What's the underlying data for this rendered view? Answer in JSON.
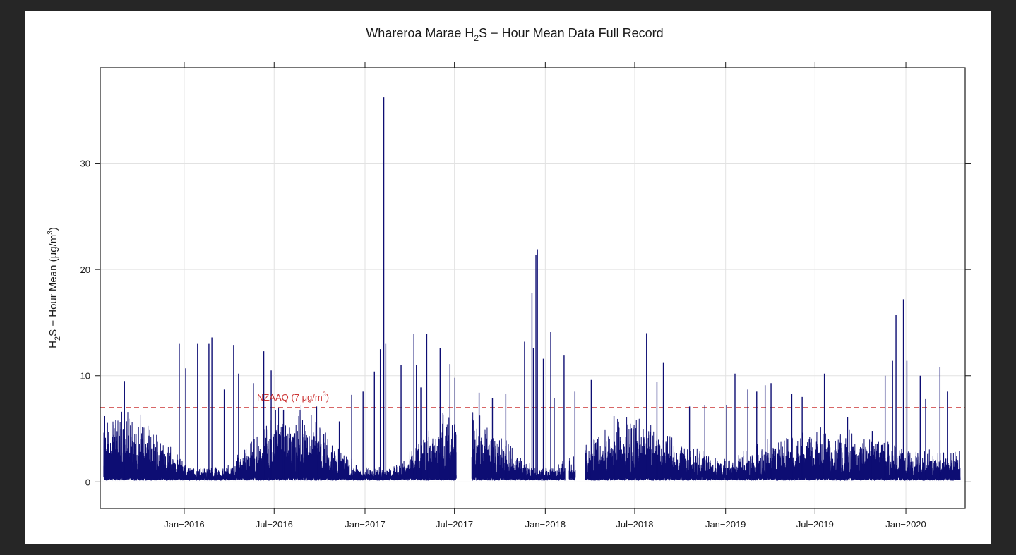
{
  "chart_data": {
    "type": "line",
    "title": {
      "pre": "Whareroa Marae H",
      "sub": "2",
      "post": "S − Hour Mean Data Full Record"
    },
    "ylabel": {
      "pre": "H",
      "sub": "2",
      "mid": "S − Hour Mean (μg/m",
      "sup": "3",
      "post": ")"
    },
    "xlabel": "",
    "x_range": [
      "2015-07-15",
      "2020-04-30"
    ],
    "ylim": [
      -2.5,
      39
    ],
    "y_ticks": [
      0,
      10,
      20,
      30
    ],
    "x_ticks": [
      {
        "date": "2016-01-01",
        "label": "Jan−2016"
      },
      {
        "date": "2016-07-01",
        "label": "Jul−2016"
      },
      {
        "date": "2017-01-01",
        "label": "Jan−2017"
      },
      {
        "date": "2017-07-01",
        "label": "Jul−2017"
      },
      {
        "date": "2018-01-01",
        "label": "Jan−2018"
      },
      {
        "date": "2018-07-01",
        "label": "Jul−2018"
      },
      {
        "date": "2019-01-01",
        "label": "Jan−2019"
      },
      {
        "date": "2019-07-01",
        "label": "Jul−2019"
      },
      {
        "date": "2020-01-01",
        "label": "Jan−2020"
      }
    ],
    "grid": true,
    "series": [
      {
        "color": "#0d0d73",
        "data_gaps": [
          [
            "2017-07-05",
            "2017-08-05"
          ],
          [
            "2018-02-10",
            "2018-02-18"
          ],
          [
            "2018-03-03",
            "2018-03-22"
          ]
        ],
        "record_start": "2015-07-22",
        "record_end": "2020-04-20",
        "peaks": [
          [
            "2015-07-24",
            6.2
          ],
          [
            "2015-09-02",
            9.5
          ],
          [
            "2015-12-22",
            13.0
          ],
          [
            "2016-01-04",
            10.7
          ],
          [
            "2016-01-28",
            13.0
          ],
          [
            "2016-02-20",
            13.0
          ],
          [
            "2016-02-26",
            13.6
          ],
          [
            "2016-03-22",
            8.7
          ],
          [
            "2016-04-10",
            12.9
          ],
          [
            "2016-04-20",
            10.2
          ],
          [
            "2016-05-20",
            9.3
          ],
          [
            "2016-06-10",
            12.3
          ],
          [
            "2016-06-25",
            10.5
          ],
          [
            "2016-07-20",
            6.8
          ],
          [
            "2016-08-20",
            6.2
          ],
          [
            "2016-09-25",
            7.1
          ],
          [
            "2016-11-10",
            5.7
          ],
          [
            "2016-12-05",
            8.2
          ],
          [
            "2016-12-28",
            8.5
          ],
          [
            "2017-01-20",
            10.4
          ],
          [
            "2017-02-01",
            12.5
          ],
          [
            "2017-02-08",
            36.2
          ],
          [
            "2017-02-12",
            13.0
          ],
          [
            "2017-03-15",
            11.0
          ],
          [
            "2017-04-10",
            13.9
          ],
          [
            "2017-04-15",
            11.0
          ],
          [
            "2017-04-24",
            8.9
          ],
          [
            "2017-05-06",
            13.9
          ],
          [
            "2017-06-02",
            12.6
          ],
          [
            "2017-06-22",
            11.1
          ],
          [
            "2017-07-02",
            9.8
          ],
          [
            "2017-08-20",
            8.4
          ],
          [
            "2017-09-16",
            7.9
          ],
          [
            "2017-10-13",
            8.3
          ],
          [
            "2017-11-20",
            13.2
          ],
          [
            "2017-12-05",
            17.8
          ],
          [
            "2017-12-08",
            12.6
          ],
          [
            "2017-12-13",
            21.4
          ],
          [
            "2017-12-16",
            21.9
          ],
          [
            "2017-12-28",
            11.6
          ],
          [
            "2018-01-12",
            14.1
          ],
          [
            "2018-01-19",
            7.9
          ],
          [
            "2018-02-08",
            11.9
          ],
          [
            "2018-03-02",
            8.5
          ],
          [
            "2018-04-04",
            9.6
          ],
          [
            "2018-05-20",
            6.2
          ],
          [
            "2018-07-25",
            14.0
          ],
          [
            "2018-08-15",
            9.4
          ],
          [
            "2018-08-28",
            11.2
          ],
          [
            "2018-10-20",
            7.1
          ],
          [
            "2018-11-20",
            7.2
          ],
          [
            "2019-01-03",
            7.2
          ],
          [
            "2019-01-20",
            10.2
          ],
          [
            "2019-02-15",
            8.7
          ],
          [
            "2019-03-05",
            8.5
          ],
          [
            "2019-03-22",
            9.1
          ],
          [
            "2019-04-03",
            9.3
          ],
          [
            "2019-05-15",
            8.3
          ],
          [
            "2019-06-05",
            8.0
          ],
          [
            "2019-07-20",
            10.2
          ],
          [
            "2019-09-05",
            6.1
          ],
          [
            "2019-10-25",
            4.8
          ],
          [
            "2019-11-20",
            10.0
          ],
          [
            "2019-12-05",
            11.4
          ],
          [
            "2019-12-12",
            15.7
          ],
          [
            "2019-12-27",
            17.2
          ],
          [
            "2020-01-03",
            11.4
          ],
          [
            "2020-01-30",
            10.0
          ],
          [
            "2020-02-10",
            7.8
          ],
          [
            "2020-03-10",
            10.8
          ],
          [
            "2020-03-25",
            8.5
          ]
        ]
      }
    ],
    "reference_lines": [
      {
        "y": 7,
        "color": "#cc3333",
        "style": "dashed",
        "label": {
          "pre": "NZAAQ (7 μg/m",
          "sup": "3",
          "post": ")"
        }
      }
    ]
  }
}
